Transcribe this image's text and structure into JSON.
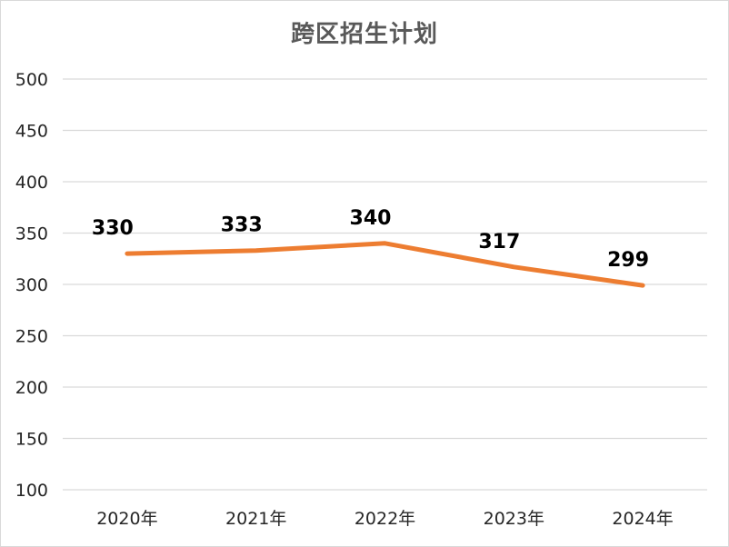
{
  "chart_data": {
    "type": "line",
    "title": "跨区招生计划",
    "categories": [
      "2020年",
      "2021年",
      "2022年",
      "2023年",
      "2024年"
    ],
    "series": [
      {
        "values": [
          330,
          333,
          340,
          317,
          299
        ],
        "color": "#ED7D31"
      }
    ],
    "ylim": [
      100,
      500
    ],
    "yticks": [
      100,
      150,
      200,
      250,
      300,
      350,
      400,
      450,
      500
    ],
    "grid": true,
    "data_labels": true,
    "legend": "none"
  }
}
